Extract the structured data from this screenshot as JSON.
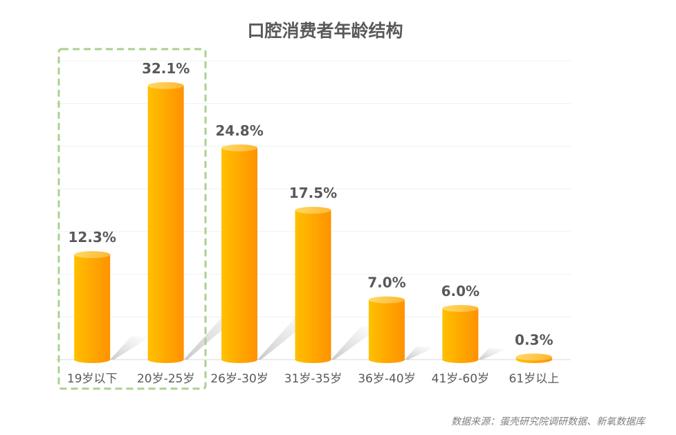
{
  "chart_data": {
    "type": "bar",
    "title": "口腔消费者年龄结构",
    "categories": [
      "19岁以下",
      "20岁-25岁",
      "26岁-30岁",
      "31岁-35岁",
      "36岁-40岁",
      "41岁-60岁",
      "61岁以上"
    ],
    "values": [
      12.3,
      32.1,
      24.8,
      17.5,
      7.0,
      6.0,
      0.3
    ],
    "value_labels": [
      "12.3%",
      "32.1%",
      "24.8%",
      "17.5%",
      "7.0%",
      "6.0%",
      "0.3%"
    ],
    "ylim": [
      0,
      35
    ],
    "grid": true,
    "legend": "none",
    "bar_color": "#FFA500",
    "highlight": {
      "categories": [
        "19岁以下",
        "20岁-25岁"
      ],
      "color": "#A9D18E",
      "style": "dashed-box"
    },
    "source": "数据来源：蛋壳研究院调研数据、新氧数据库"
  }
}
